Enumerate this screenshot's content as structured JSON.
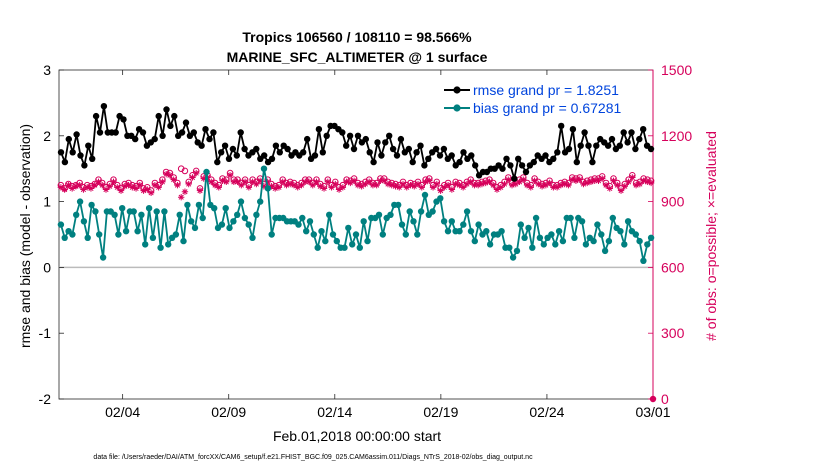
{
  "chart_data": {
    "type": "line",
    "title": "Tropics 106560 / 108110 = 98.566%",
    "subtitle": "MARINE_SFC_ALTIMETER @ 1 surface",
    "xlabel": "Feb.01,2018 00:00:00 start",
    "ylabel": "rmse and bias (model - observation)",
    "ylabel_right": "# of obs: o=possible; ×=evaluated",
    "xlim": [
      0,
      28
    ],
    "ylim": [
      -2,
      3
    ],
    "ylim_right": [
      0,
      1500
    ],
    "x_ticks": [
      3,
      8,
      13,
      18,
      23,
      28
    ],
    "x_tick_labels": [
      "02/04",
      "02/09",
      "02/14",
      "02/19",
      "02/24",
      "03/01"
    ],
    "y_ticks": [
      -2,
      -1,
      0,
      1,
      2,
      3
    ],
    "y_tick_labels": [
      "-2",
      "-1",
      "0",
      "1",
      "2",
      "3"
    ],
    "y_right_ticks": [
      0,
      300,
      600,
      900,
      1200,
      1500
    ],
    "y_right_tick_labels": [
      "0",
      "300",
      "600",
      "900",
      "1200",
      "1500"
    ],
    "footer": "data file: /Users/raeder/DAI/ATM_forcXX/CAM6_setup/f.e21.FHIST_BGC.f09_025.CAM6assim.011/Diags_NTrS_2018-02/obs_diag_output.nc",
    "zero_line": true,
    "series": [
      {
        "name": "rmse",
        "legend": "rmse grand pr = 1.8251",
        "color": "#000000",
        "axis": "left",
        "values": [
          1.75,
          1.6,
          1.95,
          1.75,
          2.02,
          1.7,
          1.55,
          1.85,
          1.65,
          2.3,
          2.05,
          2.45,
          2.05,
          2.05,
          2.05,
          2.3,
          2.25,
          2.0,
          2.0,
          1.95,
          2.1,
          2.05,
          1.85,
          1.9,
          1.95,
          2.3,
          2.0,
          2.4,
          2.15,
          2.3,
          2.0,
          2.05,
          2.2,
          2.0,
          2.05,
          1.9,
          1.85,
          2.1,
          1.95,
          2.05,
          1.6,
          1.75,
          1.85,
          1.65,
          1.8,
          1.7,
          2.05,
          1.8,
          1.7,
          1.75,
          1.8,
          1.65,
          1.7,
          1.6,
          1.65,
          1.85,
          1.75,
          1.85,
          1.8,
          1.7,
          1.75,
          1.7,
          1.75,
          1.95,
          1.65,
          1.7,
          2.1,
          1.75,
          2.0,
          2.15,
          2.15,
          2.1,
          2.05,
          1.85,
          2.0,
          1.8,
          2.0,
          1.9,
          1.95,
          1.75,
          1.6,
          1.9,
          1.7,
          1.9,
          2.0,
          1.8,
          1.7,
          1.95,
          1.75,
          1.8,
          1.6,
          1.75,
          1.85,
          1.55,
          1.65,
          1.75,
          1.8,
          1.7,
          1.8,
          1.65,
          1.7,
          1.55,
          1.6,
          1.75,
          1.65,
          1.7,
          1.55,
          1.4,
          1.45,
          1.45,
          1.5,
          1.5,
          1.55,
          1.5,
          1.65,
          1.55,
          1.35,
          1.65,
          1.55,
          1.45,
          1.55,
          1.6,
          1.7,
          1.65,
          1.7,
          1.6,
          1.65,
          1.75,
          2.15,
          1.75,
          1.8,
          2.1,
          1.6,
          1.85,
          2.05,
          1.85,
          1.6,
          1.85,
          1.95,
          1.9,
          1.85,
          1.95,
          1.8,
          1.85,
          2.05,
          1.9,
          2.05,
          1.8,
          1.95,
          2.1,
          1.85,
          1.8
        ]
      },
      {
        "name": "bias",
        "legend": "bias grand pr = 0.67281",
        "color": "#008080",
        "axis": "left",
        "values": [
          0.65,
          0.45,
          0.55,
          0.5,
          0.8,
          1.0,
          0.7,
          0.45,
          0.95,
          0.85,
          0.5,
          0.15,
          0.85,
          0.85,
          0.8,
          0.5,
          0.9,
          0.55,
          0.85,
          0.85,
          0.55,
          0.8,
          0.35,
          0.9,
          0.45,
          0.85,
          0.3,
          0.85,
          0.35,
          0.45,
          0.5,
          0.8,
          0.4,
          0.95,
          0.7,
          0.6,
          0.95,
          0.75,
          1.45,
          0.95,
          0.9,
          0.6,
          0.65,
          0.9,
          0.6,
          0.7,
          0.8,
          1.0,
          0.75,
          0.65,
          0.45,
          0.8,
          1.0,
          1.5,
          1.2,
          0.5,
          0.75,
          0.75,
          0.75,
          0.7,
          0.7,
          0.7,
          0.65,
          0.75,
          0.55,
          0.7,
          0.5,
          0.3,
          0.55,
          0.4,
          0.8,
          0.5,
          0.4,
          0.3,
          0.3,
          0.6,
          0.35,
          0.5,
          0.3,
          0.7,
          0.4,
          0.75,
          0.75,
          0.8,
          0.5,
          0.75,
          0.8,
          0.95,
          0.95,
          0.65,
          0.5,
          0.85,
          0.7,
          0.5,
          0.85,
          1.1,
          0.8,
          0.85,
          1.0,
          1.05,
          0.7,
          0.55,
          0.7,
          0.55,
          0.55,
          0.65,
          0.85,
          0.55,
          0.4,
          0.65,
          0.5,
          0.55,
          0.35,
          0.5,
          0.5,
          0.55,
          0.3,
          0.3,
          0.15,
          0.25,
          0.65,
          0.45,
          0.6,
          0.3,
          0.75,
          0.45,
          0.35,
          0.45,
          0.5,
          0.35,
          0.55,
          0.4,
          0.75,
          0.75,
          0.45,
          0.75,
          0.7,
          0.35,
          0.45,
          0.4,
          0.65,
          0.5,
          0.25,
          0.4,
          0.75,
          0.6,
          0.55,
          0.35,
          0.7,
          0.55,
          0.5,
          0.4,
          0.1,
          0.35,
          0.45
        ]
      },
      {
        "name": "possible",
        "color": "#d6005b",
        "marker": "circle",
        "axis": "right",
        "values": [
          975,
          960,
          980,
          970,
          975,
          985,
          965,
          975,
          970,
          980,
          1000,
          985,
          965,
          980,
          1000,
          975,
          960,
          980,
          985,
          975,
          970,
          985,
          960,
          965,
          950,
          985,
          975,
          1000,
          1035,
          1030,
          1010,
          985,
          1050,
          1040,
          990,
          1020,
          1040,
          960,
          1015,
          1020,
          1000,
          985,
          975,
          1005,
          1000,
          1030,
          1000,
          1000,
          985,
          1000,
          975,
          1000,
          990,
          1005,
          980,
          1000,
          980,
          970,
          975,
          1000,
          985,
          990,
          985,
          975,
          985,
          1000,
          1000,
          985,
          1000,
          980,
          970,
          1000,
          975,
          990,
          965,
          975,
          1000,
          995,
          1005,
          985,
          980,
          990,
          1000,
          985,
          985,
          1005,
          1005,
          990,
          985,
          980,
          975,
          990,
          975,
          985,
          980,
          990,
          975,
          1000,
          1005,
          975,
          990,
          960,
          975,
          985,
          965,
          990,
          985,
          975,
          990,
          1000,
          985,
          985,
          990,
          995,
          1000,
          985,
          965,
          975,
          990,
          1010,
          985,
          990,
          1000,
          1010,
          985,
          975,
          1005,
          990,
          980,
          985,
          995,
          975,
          975,
          985,
          990,
          985,
          1010,
          1005,
          1010,
          990,
          995,
          1000,
          1005,
          1005,
          1015,
          985,
          970,
          1005,
          985,
          960,
          980,
          1000,
          1020,
          985,
          990,
          1005,
          1000,
          995
        ]
      },
      {
        "name": "evaluated",
        "color": "#d6005b",
        "marker": "asterisk",
        "axis": "right",
        "values": [
          965,
          955,
          975,
          960,
          970,
          975,
          955,
          965,
          960,
          975,
          990,
          975,
          955,
          970,
          990,
          965,
          950,
          970,
          975,
          965,
          960,
          975,
          950,
          955,
          940,
          975,
          965,
          990,
          1025,
          1020,
          1000,
          975,
          920,
          945,
          980,
          1010,
          1030,
          950,
          1005,
          1010,
          990,
          975,
          965,
          995,
          990,
          1020,
          990,
          990,
          975,
          990,
          965,
          990,
          980,
          995,
          970,
          990,
          970,
          960,
          965,
          990,
          975,
          980,
          975,
          965,
          975,
          990,
          990,
          975,
          990,
          970,
          960,
          990,
          965,
          980,
          955,
          965,
          990,
          985,
          995,
          975,
          970,
          980,
          990,
          975,
          975,
          995,
          995,
          980,
          975,
          970,
          965,
          980,
          965,
          975,
          970,
          980,
          965,
          990,
          995,
          965,
          980,
          950,
          965,
          975,
          955,
          980,
          975,
          965,
          980,
          990,
          975,
          975,
          980,
          985,
          990,
          975,
          955,
          965,
          980,
          1000,
          975,
          980,
          990,
          1000,
          975,
          965,
          995,
          980,
          970,
          975,
          985,
          965,
          965,
          975,
          980,
          975,
          1000,
          995,
          1000,
          980,
          985,
          990,
          995,
          995,
          1005,
          975,
          960,
          995,
          975,
          950,
          970,
          990,
          1010,
          975,
          980,
          995,
          990,
          985
        ]
      }
    ]
  }
}
